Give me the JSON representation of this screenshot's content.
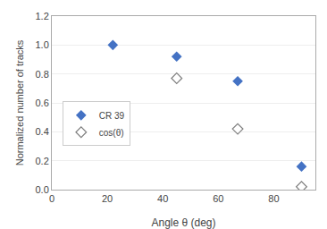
{
  "chart_data": {
    "type": "scatter",
    "xlabel": "Angle θ (deg)",
    "ylabel": "Normalized number of tracks",
    "series": [
      {
        "name": "CR 39",
        "color": "#4472C4",
        "marker": "diamond",
        "x": [
          22,
          45,
          67,
          90
        ],
        "values": [
          1.0,
          0.92,
          0.75,
          0.16
        ]
      },
      {
        "name": "cos(θ)",
        "color": "#7f7f7f",
        "marker": "diamond-open",
        "x": [
          45,
          67,
          90
        ],
        "values": [
          0.77,
          0.42,
          0.02
        ]
      }
    ],
    "xlim": [
      0,
      95
    ],
    "ylim": [
      0,
      1.2
    ],
    "xticks": [
      0,
      20,
      40,
      60,
      80
    ],
    "yticks": [
      {
        "value": 0,
        "label": "0.0"
      },
      0.2,
      0.4,
      0.6,
      0.8,
      {
        "value": 1.0,
        "label": "1.0"
      },
      1.2
    ],
    "grid": "y",
    "legend": "center left"
  }
}
